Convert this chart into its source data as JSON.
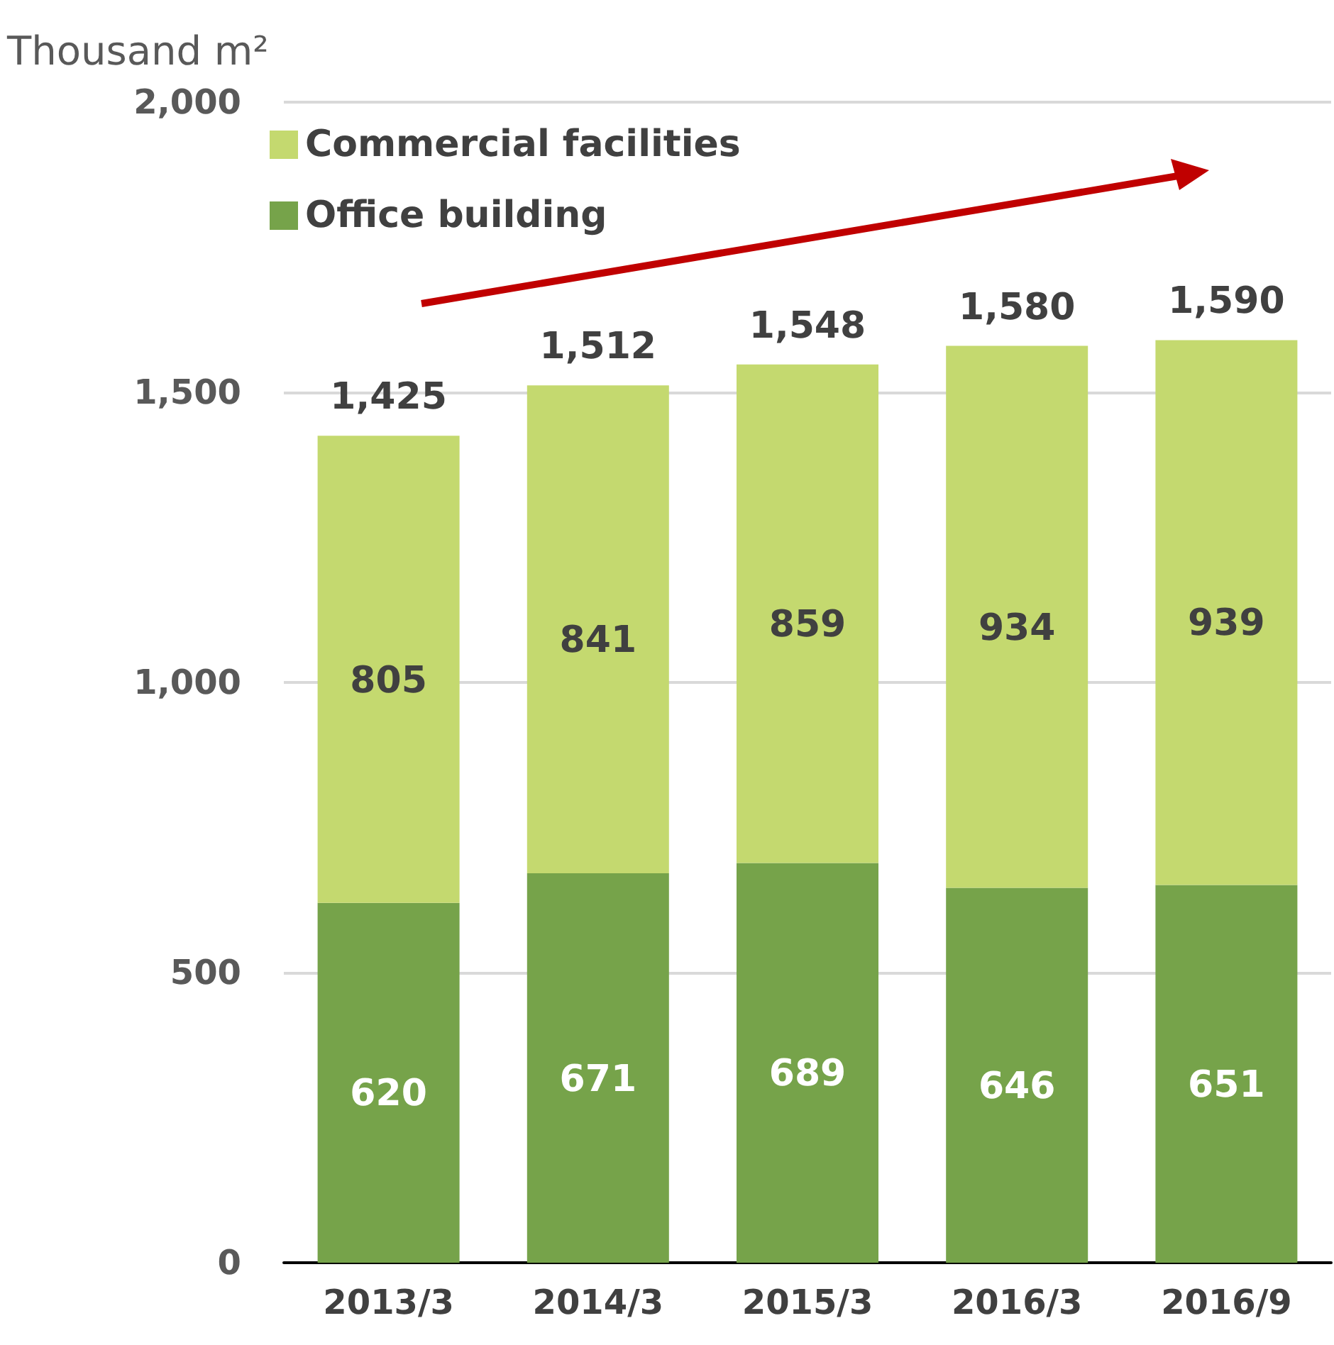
{
  "chart_data": {
    "type": "bar",
    "stacked": true,
    "ylabel": "Thousand m²",
    "categories": [
      "2013/3",
      "2014/3",
      "2015/3",
      "2016/3",
      "2016/9"
    ],
    "series": [
      {
        "name": "Office building",
        "color": "#76a34a",
        "values": [
          620,
          671,
          689,
          646,
          651
        ]
      },
      {
        "name": "Commercial facilities",
        "color": "#c4d96f",
        "values": [
          805,
          841,
          859,
          934,
          939
        ]
      }
    ],
    "totals": [
      "1,425",
      "1,512",
      "1,548",
      "1,580",
      "1,590"
    ],
    "ylim": [
      0,
      2000
    ],
    "yticks": [
      {
        "value": 0,
        "label": "0"
      },
      {
        "value": 500,
        "label": "500"
      },
      {
        "value": 1000,
        "label": "1,000"
      },
      {
        "value": 1500,
        "label": "1,500"
      },
      {
        "value": 2000,
        "label": "2,000"
      }
    ],
    "grid": "y",
    "legend": "top left",
    "data_labels": true
  }
}
